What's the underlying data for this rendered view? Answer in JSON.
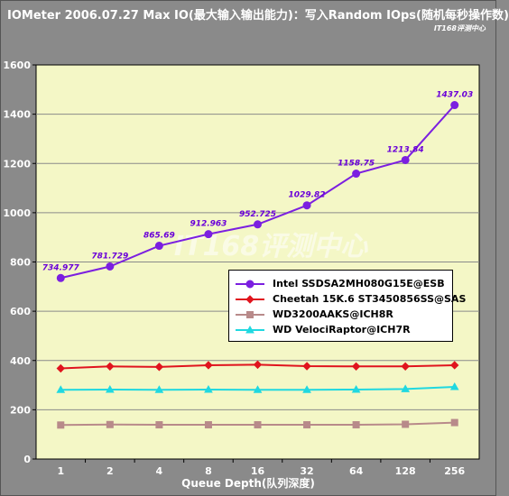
{
  "page": {
    "title": "IOMeter 2006.07.27 Max IO(最大输入输出能力)：写入Random IOps(随机每秒操作数)",
    "watermark_small": "IT168评测中心",
    "watermark_large": "IT168评测中心"
  },
  "chart_data": {
    "type": "line",
    "title": "IOMeter 2006.07.27 Max IO(最大输入输出能力)：写入Random IOps(随机每秒操作数)",
    "xlabel": "Queue Depth(队列深度)",
    "ylabel": "",
    "categories": [
      "1",
      "2",
      "4",
      "8",
      "16",
      "32",
      "64",
      "128",
      "256"
    ],
    "ylim": [
      0,
      1600
    ],
    "yticks": [
      0,
      200,
      400,
      600,
      800,
      1000,
      1200,
      1400,
      1600
    ],
    "grid": true,
    "legend_position": "center-right",
    "series": [
      {
        "name": "Intel SSDSA2MH080G15E@ESB",
        "color": "#7b1fe0",
        "marker": "circle",
        "values": [
          734.977,
          781.729,
          865.69,
          912.963,
          952.725,
          1029.82,
          1158.75,
          1213.84,
          1437.03
        ],
        "labels": [
          "734.977",
          "781.729",
          "865.69",
          "912.963",
          "952.725",
          "1029.82",
          "1158.75",
          "1213.84",
          "1437.03"
        ]
      },
      {
        "name": "Cheetah 15K.6 ST3450856SS@SAS",
        "color": "#e0141e",
        "marker": "diamond",
        "values": [
          368,
          376,
          374,
          381,
          383,
          377,
          376,
          376,
          381
        ]
      },
      {
        "name": "WD3200AAKS@ICH8R",
        "color": "#b88a8a",
        "marker": "square",
        "values": [
          138,
          140,
          139,
          139,
          139,
          139,
          139,
          141,
          148
        ]
      },
      {
        "name": "WD VelociRaptor@ICH7R",
        "color": "#20d8e0",
        "marker": "triangle",
        "values": [
          281,
          282,
          281,
          282,
          281,
          281,
          282,
          284,
          293
        ]
      }
    ],
    "colors": {
      "plot_background": "#f4f7c6",
      "outer_background": "#8a8a8a",
      "gridline": "#8a8a8a"
    }
  }
}
